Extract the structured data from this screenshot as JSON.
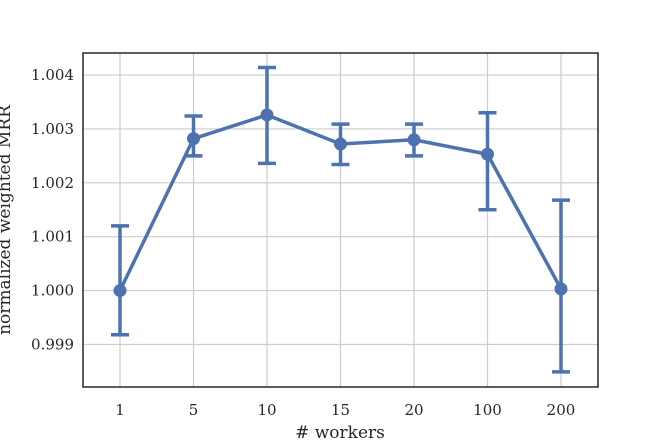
{
  "chart_data": {
    "type": "line",
    "categories": [
      "1",
      "5",
      "10",
      "15",
      "20",
      "100",
      "200"
    ],
    "values": [
      1.0,
      1.00282,
      1.00326,
      1.00272,
      1.0028,
      1.00253,
      1.00003
    ],
    "error_low": [
      0.99918,
      1.0025,
      1.00236,
      1.00234,
      1.0025,
      1.0015,
      0.99849
    ],
    "error_high": [
      1.0012,
      1.00324,
      1.00414,
      1.00309,
      1.00309,
      1.0033,
      1.00168
    ],
    "xlabel": "# workers",
    "ylabel": "normalized weighted MRR",
    "ylim": [
      0.99821,
      1.00441
    ],
    "yticks": [
      0.999,
      1.0,
      1.001,
      1.002,
      1.003,
      1.004
    ],
    "ytick_labels": [
      "0.999",
      "1.000",
      "1.001",
      "1.002",
      "1.003",
      "1.004"
    ],
    "grid": true,
    "color": "#4c72b0"
  }
}
